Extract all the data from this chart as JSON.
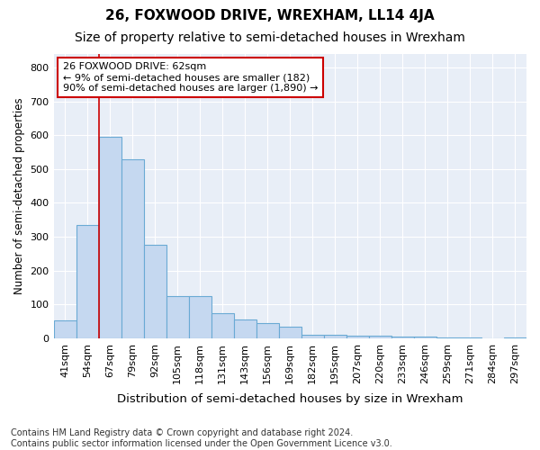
{
  "title": "26, FOXWOOD DRIVE, WREXHAM, LL14 4JA",
  "subtitle": "Size of property relative to semi-detached houses in Wrexham",
  "xlabel": "Distribution of semi-detached houses by size in Wrexham",
  "ylabel": "Number of semi-detached properties",
  "categories": [
    "41sqm",
    "54sqm",
    "67sqm",
    "79sqm",
    "92sqm",
    "105sqm",
    "118sqm",
    "131sqm",
    "143sqm",
    "156sqm",
    "169sqm",
    "182sqm",
    "195sqm",
    "207sqm",
    "220sqm",
    "233sqm",
    "246sqm",
    "259sqm",
    "271sqm",
    "284sqm",
    "297sqm"
  ],
  "values": [
    52,
    335,
    595,
    530,
    275,
    125,
    125,
    75,
    55,
    45,
    35,
    10,
    10,
    8,
    8,
    5,
    5,
    3,
    3,
    1,
    3
  ],
  "bar_color": "#c5d8f0",
  "bar_edge_color": "#6aaad4",
  "vline_x": 1.5,
  "vline_color": "#cc0000",
  "annotation_text": "26 FOXWOOD DRIVE: 62sqm\n← 9% of semi-detached houses are smaller (182)\n90% of semi-detached houses are larger (1,890) →",
  "annotation_box_color": "white",
  "annotation_box_edge": "#cc0000",
  "ylim": [
    0,
    840
  ],
  "yticks": [
    0,
    100,
    200,
    300,
    400,
    500,
    600,
    700,
    800
  ],
  "footnote": "Contains HM Land Registry data © Crown copyright and database right 2024.\nContains public sector information licensed under the Open Government Licence v3.0.",
  "bg_color": "#ffffff",
  "plot_bg_color": "#e8eef7",
  "title_fontsize": 11,
  "subtitle_fontsize": 10,
  "xlabel_fontsize": 9.5,
  "ylabel_fontsize": 8.5,
  "footnote_fontsize": 7,
  "tick_fontsize": 8
}
